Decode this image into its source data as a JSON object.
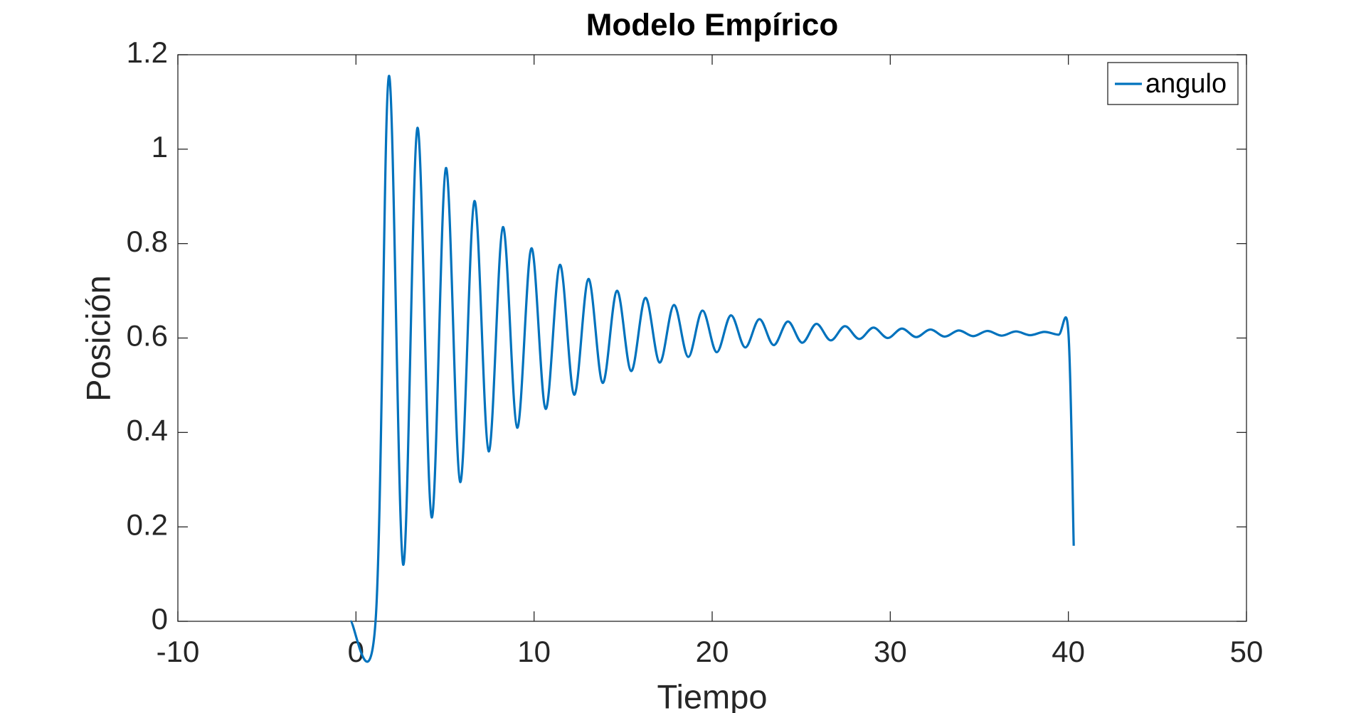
{
  "chart_data": {
    "type": "line",
    "title": "Modelo Empírico",
    "x_label": "Tiempo",
    "y_label": "Posición",
    "series": [
      {
        "name": "angulo",
        "color": "#0072bd",
        "x": [
          -0.3,
          1.1,
          1.85,
          2.65,
          3.45,
          4.25,
          5.05,
          5.85,
          6.65,
          7.45,
          8.25,
          9.05,
          9.85,
          10.65,
          11.45,
          12.25,
          13.05,
          13.85,
          14.65,
          15.45,
          16.25,
          17.05,
          17.85,
          18.65,
          19.45,
          20.25,
          21.05,
          21.85,
          22.65,
          23.45,
          24.25,
          25.05,
          25.85,
          26.65,
          27.45,
          28.25,
          29.05,
          29.85,
          30.65,
          31.45,
          32.25,
          33.05,
          33.85,
          34.65,
          35.45,
          36.25,
          37.05,
          37.85,
          38.65,
          39.45,
          40.0,
          40.3
        ],
        "values": [
          0,
          0,
          1.155,
          0.12,
          1.045,
          0.22,
          0.96,
          0.295,
          0.89,
          0.36,
          0.835,
          0.41,
          0.79,
          0.45,
          0.755,
          0.48,
          0.725,
          0.505,
          0.7,
          0.53,
          0.685,
          0.548,
          0.67,
          0.56,
          0.658,
          0.57,
          0.648,
          0.58,
          0.64,
          0.585,
          0.635,
          0.59,
          0.63,
          0.595,
          0.625,
          0.598,
          0.622,
          0.6,
          0.62,
          0.602,
          0.618,
          0.603,
          0.616,
          0.604,
          0.615,
          0.605,
          0.614,
          0.606,
          0.613,
          0.607,
          0.612,
          0.16
        ]
      }
    ],
    "xlim": [
      -10,
      50
    ],
    "xticks": [
      -10,
      0,
      10,
      20,
      30,
      40,
      50
    ],
    "ylim": [
      0,
      1.2
    ],
    "yticks": [
      0,
      0.2,
      0.4,
      0.6,
      0.8,
      1,
      1.2
    ],
    "grid": false,
    "legend": "top-right"
  }
}
